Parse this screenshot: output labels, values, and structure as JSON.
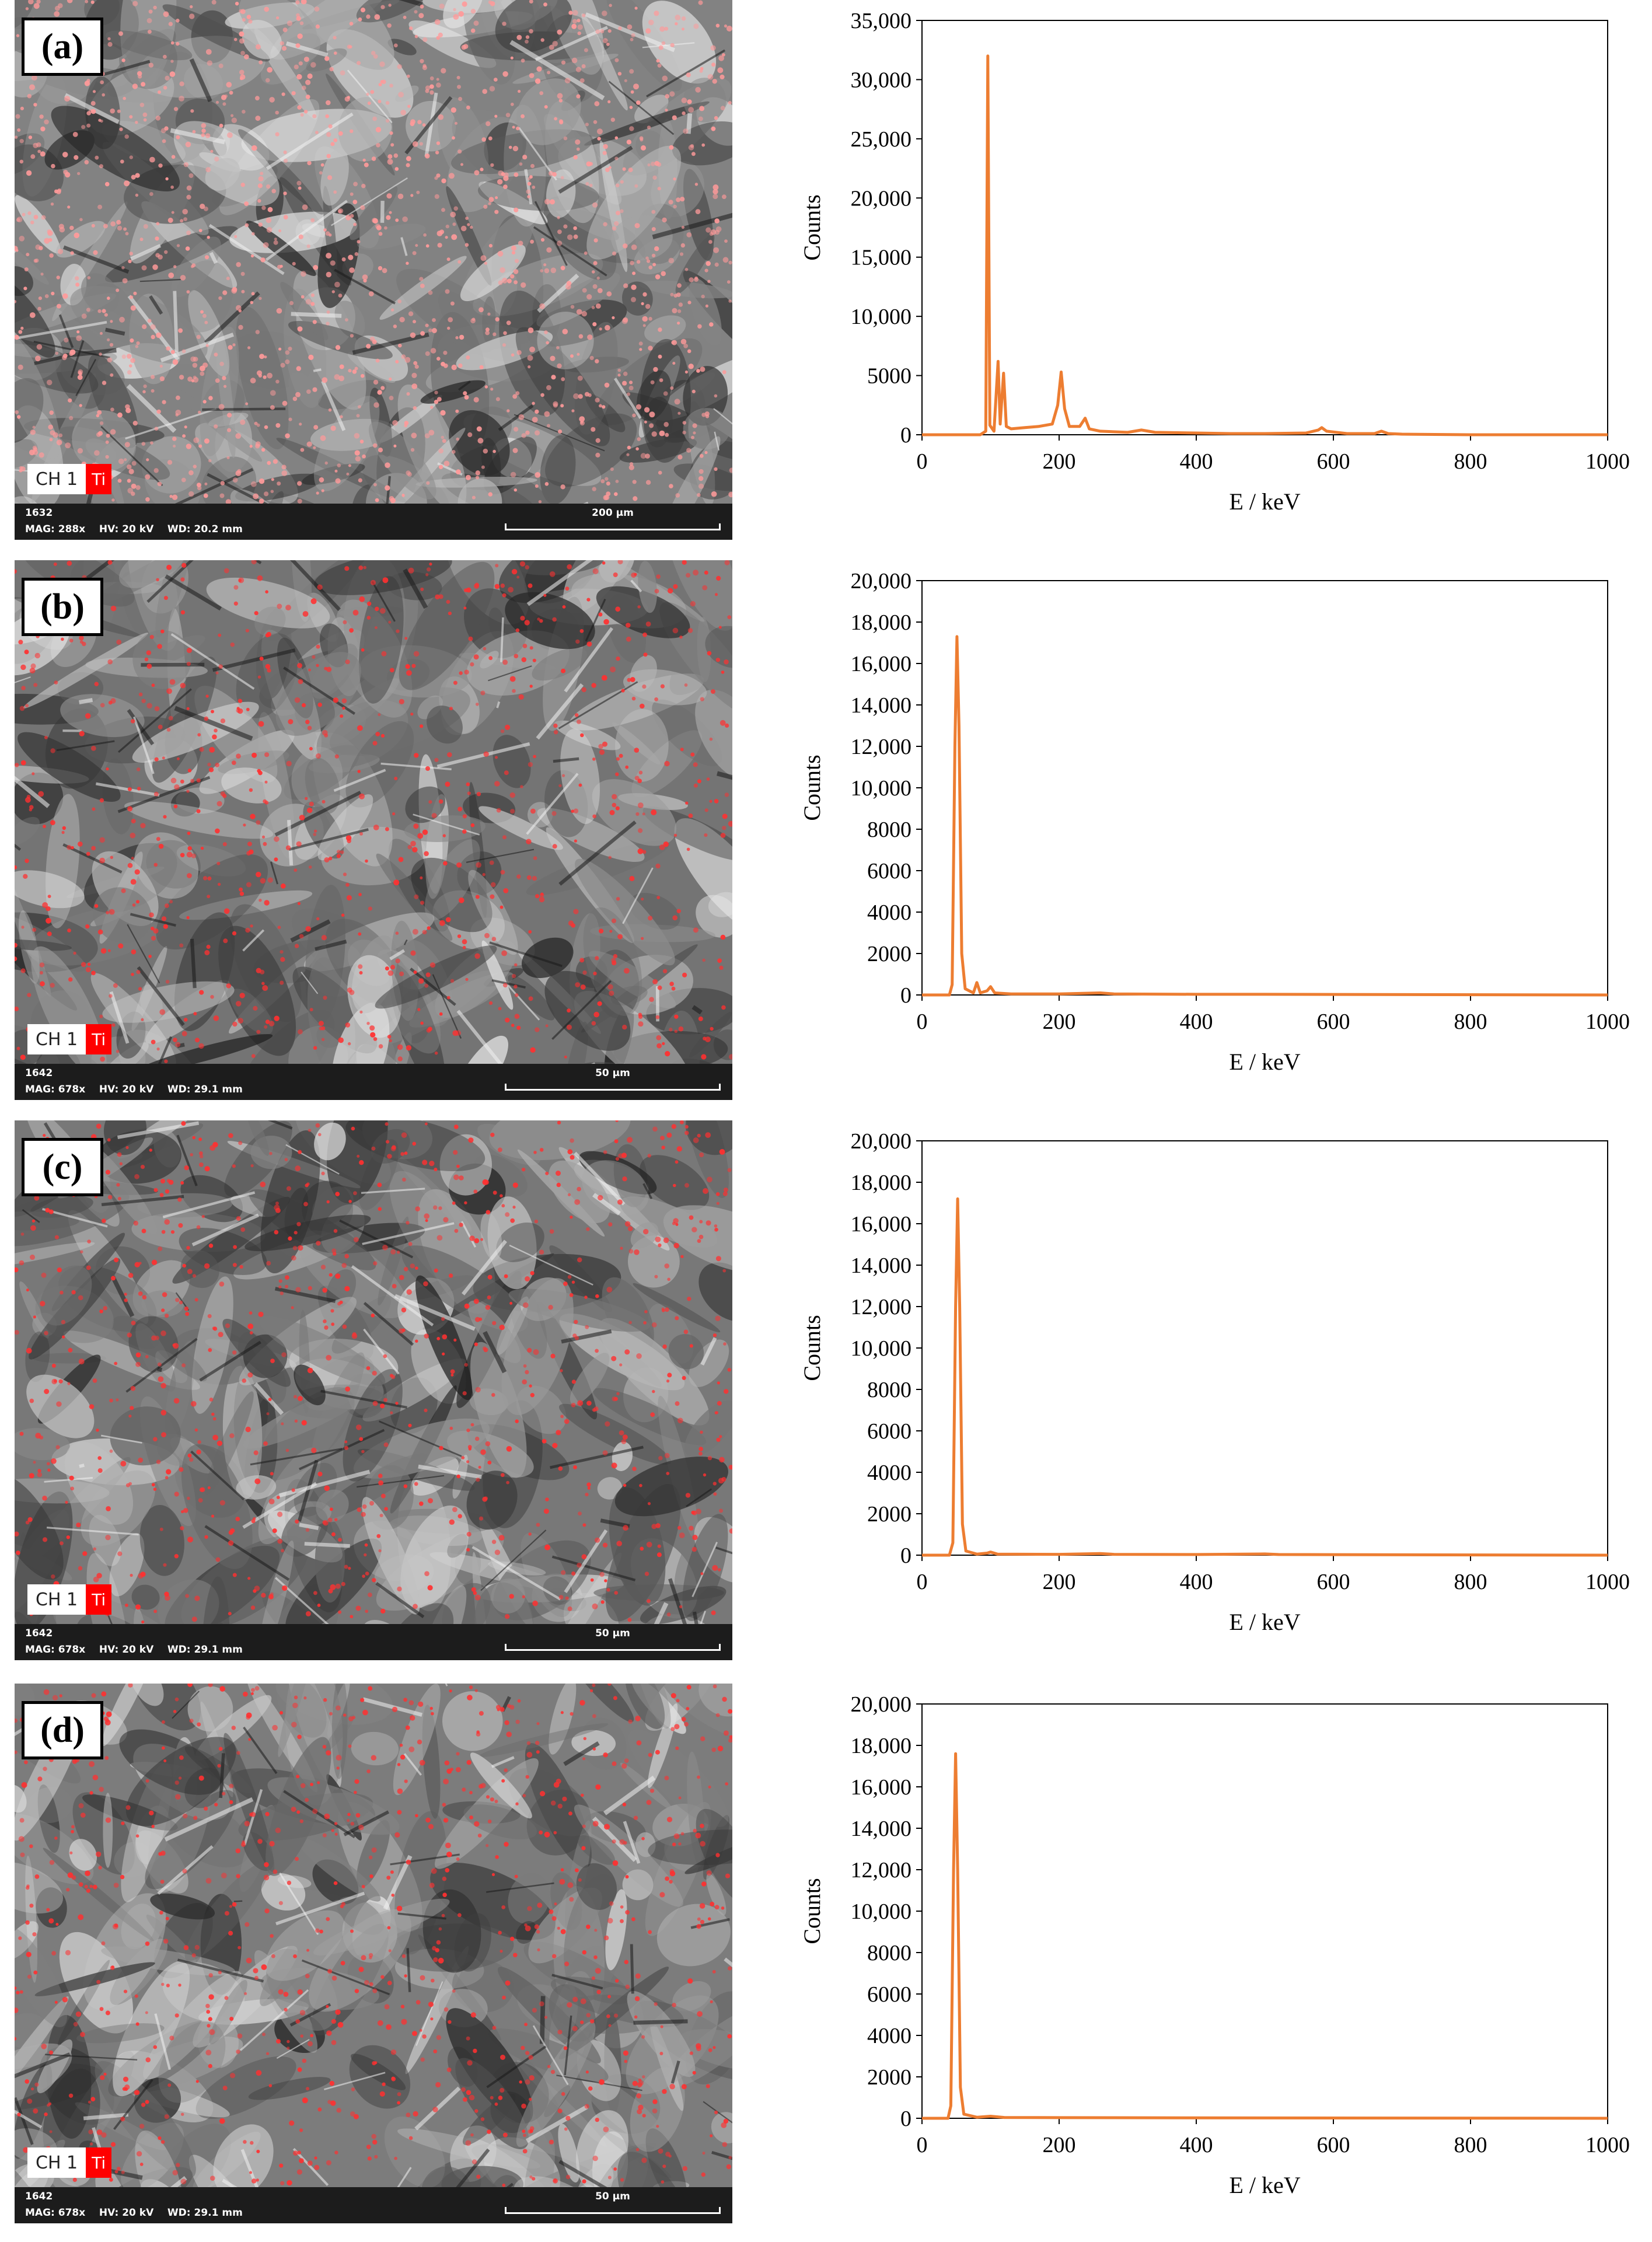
{
  "panels": [
    {
      "label": "(a)",
      "sem": {
        "ch": "CH 1",
        "el": "Ti",
        "id": "1632",
        "meta": "MAG: 288x    HV: 20 kV    WD: 20.2 mm",
        "scale": "200 µm",
        "brightness": 0.62,
        "dot_density": 0.9
      },
      "chart_data": {
        "type": "line",
        "xlabel": "E / keV",
        "ylabel": "Counts",
        "xlim": [
          0,
          1000
        ],
        "ylim": [
          0,
          35000
        ],
        "xticks": [
          0,
          200,
          400,
          600,
          800,
          1000
        ],
        "yticks": [
          0,
          5000,
          10000,
          15000,
          20000,
          25000,
          30000,
          35000
        ],
        "ytick_labels": [
          "0",
          "5000",
          "10,000",
          "15,000",
          "20,000",
          "25,000",
          "30,000",
          "35,000"
        ],
        "line_color": "#ED7D31",
        "series": [
          {
            "points": [
              [
                0,
                0
              ],
              [
                85,
                0
              ],
              [
                93,
                300
              ],
              [
                96,
                32000
              ],
              [
                99,
                800
              ],
              [
                105,
                300
              ],
              [
                111,
                6200
              ],
              [
                114,
                900
              ],
              [
                119,
                5200
              ],
              [
                123,
                700
              ],
              [
                130,
                500
              ],
              [
                150,
                600
              ],
              [
                170,
                700
              ],
              [
                190,
                900
              ],
              [
                198,
                2500
              ],
              [
                203,
                5300
              ],
              [
                208,
                2200
              ],
              [
                215,
                700
              ],
              [
                230,
                700
              ],
              [
                238,
                1400
              ],
              [
                244,
                500
              ],
              [
                260,
                300
              ],
              [
                300,
                200
              ],
              [
                320,
                400
              ],
              [
                340,
                200
              ],
              [
                400,
                150
              ],
              [
                450,
                100
              ],
              [
                500,
                100
              ],
              [
                560,
                150
              ],
              [
                578,
                400
              ],
              [
                583,
                600
              ],
              [
                590,
                300
              ],
              [
                620,
                100
              ],
              [
                660,
                100
              ],
              [
                670,
                300
              ],
              [
                680,
                100
              ],
              [
                700,
                50
              ],
              [
                800,
                0
              ],
              [
                1000,
                0
              ]
            ]
          }
        ]
      }
    },
    {
      "label": "(b)",
      "sem": {
        "ch": "CH 1",
        "el": "Ti",
        "id": "1642",
        "meta": "MAG: 678x    HV: 20 kV    WD: 29.1 mm",
        "scale": "50 µm",
        "brightness": 0.45,
        "dot_density": 0.5
      },
      "chart_data": {
        "type": "line",
        "xlabel": "E / keV",
        "ylabel": "Counts",
        "xlim": [
          0,
          1000
        ],
        "ylim": [
          0,
          20000
        ],
        "xticks": [
          0,
          200,
          400,
          600,
          800,
          1000
        ],
        "yticks": [
          0,
          2000,
          4000,
          6000,
          8000,
          10000,
          12000,
          14000,
          16000,
          18000,
          20000
        ],
        "ytick_labels": [
          "0",
          "2000",
          "4000",
          "6000",
          "8000",
          "10,000",
          "12,000",
          "14,000",
          "16,000",
          "18,000",
          "20,000"
        ],
        "line_color": "#ED7D31",
        "series": [
          {
            "points": [
              [
                0,
                0
              ],
              [
                40,
                0
              ],
              [
                44,
                500
              ],
              [
                48,
                12000
              ],
              [
                51,
                17300
              ],
              [
                54,
                13000
              ],
              [
                58,
                2000
              ],
              [
                63,
                300
              ],
              [
                75,
                100
              ],
              [
                80,
                600
              ],
              [
                85,
                100
              ],
              [
                95,
                200
              ],
              [
                100,
                400
              ],
              [
                106,
                100
              ],
              [
                130,
                50
              ],
              [
                200,
                50
              ],
              [
                260,
                100
              ],
              [
                280,
                50
              ],
              [
                400,
                30
              ],
              [
                500,
                30
              ],
              [
                1000,
                0
              ]
            ]
          }
        ]
      }
    },
    {
      "label": "(c)",
      "sem": {
        "ch": "CH 1",
        "el": "Ti",
        "id": "1642",
        "meta": "MAG: 678x    HV: 20 kV    WD: 29.1 mm",
        "scale": "50 µm",
        "brightness": 0.5,
        "dot_density": 0.5
      },
      "chart_data": {
        "type": "line",
        "xlabel": "E / keV",
        "ylabel": "Counts",
        "xlim": [
          0,
          1000
        ],
        "ylim": [
          0,
          20000
        ],
        "xticks": [
          0,
          200,
          400,
          600,
          800,
          1000
        ],
        "yticks": [
          0,
          2000,
          4000,
          6000,
          8000,
          10000,
          12000,
          14000,
          16000,
          18000,
          20000
        ],
        "ytick_labels": [
          "0",
          "2000",
          "4000",
          "6000",
          "8000",
          "10,000",
          "12,000",
          "14,000",
          "16,000",
          "18,000",
          "20,000"
        ],
        "line_color": "#ED7D31",
        "series": [
          {
            "points": [
              [
                0,
                0
              ],
              [
                40,
                0
              ],
              [
                45,
                600
              ],
              [
                49,
                12000
              ],
              [
                52,
                17200
              ],
              [
                55,
                12000
              ],
              [
                59,
                1500
              ],
              [
                64,
                200
              ],
              [
                80,
                50
              ],
              [
                95,
                100
              ],
              [
                100,
                150
              ],
              [
                110,
                50
              ],
              [
                200,
                40
              ],
              [
                260,
                80
              ],
              [
                280,
                40
              ],
              [
                400,
                30
              ],
              [
                500,
                60
              ],
              [
                520,
                30
              ],
              [
                1000,
                0
              ]
            ]
          }
        ]
      }
    },
    {
      "label": "(d)",
      "sem": {
        "ch": "CH 1",
        "el": "Ti",
        "id": "1642",
        "meta": "MAG: 678x    HV: 20 kV    WD: 29.1 mm",
        "scale": "50 µm",
        "brightness": 0.55,
        "dot_density": 0.5
      },
      "chart_data": {
        "type": "line",
        "xlabel": "E / keV",
        "ylabel": "Counts",
        "xlim": [
          0,
          1000
        ],
        "ylim": [
          0,
          20000
        ],
        "xticks": [
          0,
          200,
          400,
          600,
          800,
          1000
        ],
        "yticks": [
          0,
          2000,
          4000,
          6000,
          8000,
          10000,
          12000,
          14000,
          16000,
          18000,
          20000
        ],
        "ytick_labels": [
          "0",
          "2000",
          "4000",
          "6000",
          "8000",
          "10,000",
          "12,000",
          "14,000",
          "16,000",
          "18,000",
          "20,000"
        ],
        "line_color": "#ED7D31",
        "series": [
          {
            "points": [
              [
                0,
                0
              ],
              [
                38,
                0
              ],
              [
                42,
                600
              ],
              [
                46,
                12000
              ],
              [
                49,
                17600
              ],
              [
                52,
                12000
              ],
              [
                56,
                1500
              ],
              [
                61,
                200
              ],
              [
                80,
                50
              ],
              [
                100,
                100
              ],
              [
                120,
                40
              ],
              [
                200,
                30
              ],
              [
                400,
                20
              ],
              [
                1000,
                0
              ]
            ]
          }
        ]
      }
    }
  ]
}
